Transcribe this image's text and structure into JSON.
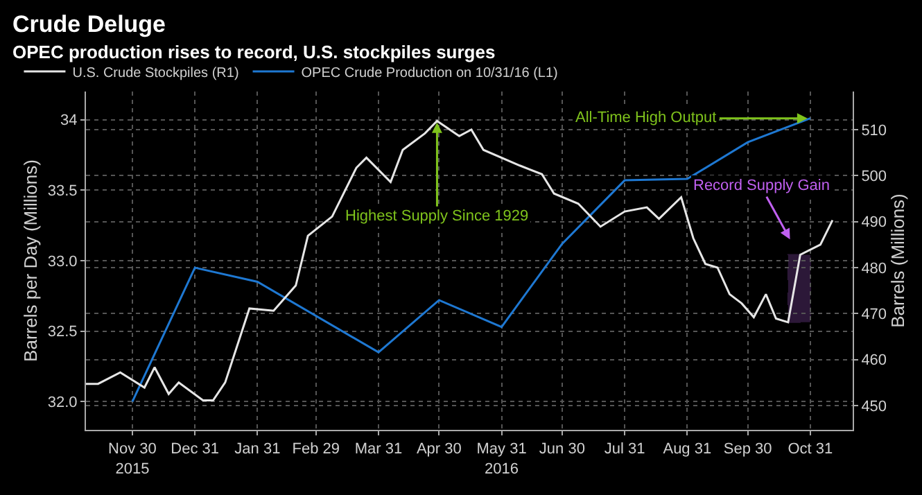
{
  "chart_data": {
    "type": "line",
    "title": "Crude Deluge",
    "subtitle": "OPEC production rises to record, U.S. stockpiles surges",
    "ylabel": "Barrels per Day (Millions)",
    "y2label": "Barrels (Millions)",
    "series": [
      {
        "name": "U.S. Crude Stockpiles (R1)",
        "color": "#e6e6e6",
        "axis": "y2",
        "x": [
          "2015-11-07",
          "2015-11-13",
          "2015-11-24",
          "2015-12-06",
          "2015-12-11",
          "2015-12-18",
          "2015-12-23",
          "2016-01-04",
          "2016-01-09",
          "2016-01-15",
          "2016-01-27",
          "2016-02-08",
          "2016-02-19",
          "2016-02-25",
          "2016-03-08",
          "2016-03-20",
          "2016-03-25",
          "2016-04-06",
          "2016-04-12",
          "2016-04-23",
          "2016-04-29",
          "2016-05-10",
          "2016-05-16",
          "2016-05-22",
          "2016-06-09",
          "2016-06-20",
          "2016-06-26",
          "2016-07-08",
          "2016-07-19",
          "2016-07-31",
          "2016-08-11",
          "2016-08-17",
          "2016-08-28",
          "2016-09-03",
          "2016-09-09",
          "2016-09-15",
          "2016-09-21",
          "2016-09-27",
          "2016-10-03",
          "2016-10-09",
          "2016-10-14",
          "2016-10-20",
          "2016-10-26",
          "2016-11-05",
          "2016-11-11"
        ],
        "values": [
          454.7,
          454.7,
          457.2,
          453.9,
          458.3,
          452.5,
          455,
          451.1,
          451.1,
          455,
          471.1,
          470.6,
          476.1,
          486.9,
          491.1,
          501.7,
          503.9,
          498.6,
          505.6,
          509.2,
          511.9,
          508.6,
          510,
          505.6,
          502.2,
          500.3,
          496.1,
          493.9,
          488.9,
          492.2,
          493.1,
          490.6,
          495.3,
          486.4,
          480.8,
          480,
          474.2,
          472.2,
          469.2,
          474.2,
          468.9,
          468.1,
          482.8,
          485,
          490.3
        ]
      },
      {
        "name": "OPEC Crude Production on 10/31/16 (L1)",
        "color": "#1e78d2",
        "x": [
          "2015-11-30",
          "2015-12-31",
          "2016-01-31",
          "2016-03-31",
          "2016-04-30",
          "2016-05-31",
          "2016-06-30",
          "2016-07-31",
          "2016-08-31",
          "2016-09-30",
          "2016-10-31"
        ],
        "values": [
          32.0,
          32.95,
          32.85,
          32.35,
          32.72,
          32.53,
          33.12,
          33.57,
          33.58,
          33.84,
          34.01
        ]
      }
    ],
    "xlim": [
      "2015-11-07",
      "2016-11-21"
    ],
    "xticks": [
      {
        "value": "2015-11-30",
        "label": "Nov 30\n2015"
      },
      {
        "value": "2015-12-31",
        "label": "Dec 31"
      },
      {
        "value": "2016-01-31",
        "label": "Jan 31"
      },
      {
        "value": "2016-02-29",
        "label": "Feb 29"
      },
      {
        "value": "2016-03-31",
        "label": "Mar 31"
      },
      {
        "value": "2016-04-30",
        "label": "Apr 30"
      },
      {
        "value": "2016-05-31",
        "label": "May 31\n2016"
      },
      {
        "value": "2016-06-30",
        "label": "Jun 30"
      },
      {
        "value": "2016-07-31",
        "label": "Jul 31"
      },
      {
        "value": "2016-08-31",
        "label": "Aug 31"
      },
      {
        "value": "2016-09-30",
        "label": "Sep 30"
      },
      {
        "value": "2016-10-31",
        "label": "Oct 31"
      }
    ],
    "ylim": [
      31.8,
      34.2
    ],
    "yticks": [
      {
        "value": 32,
        "label": "32.0"
      },
      {
        "value": 32.5,
        "label": "32.5"
      },
      {
        "value": 33,
        "label": "33.0"
      },
      {
        "value": 33.5,
        "label": "33.5"
      },
      34
    ],
    "y2lim": [
      444.7,
      518.3
    ],
    "y2ticks": [
      450,
      460,
      470,
      480,
      490,
      500,
      510
    ],
    "annotations": [
      {
        "text": "Highest Supply Since 1929",
        "x": "2016-04-29",
        "y": 34.0
      },
      {
        "text": "All-Time High Output",
        "x": "2016-10-31",
        "y": 34.01
      },
      "Record Supply Gain"
    ],
    "bands": [
      {
        "axis": "x",
        "from": "2016-10-20",
        "to": "2016-10-31",
        "color": "#b060e0"
      }
    ],
    "grid": true,
    "legend": "top left",
    "line_style": "solid",
    "marker": "none"
  }
}
